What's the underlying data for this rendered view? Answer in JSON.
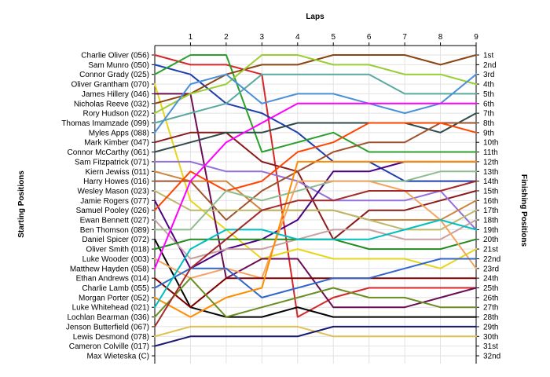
{
  "chart_data": {
    "type": "line",
    "title": "",
    "xlabel": "Laps",
    "ylabel_left": "Starting Positions",
    "ylabel_right": "Finishing Positions",
    "x": [
      0,
      1,
      2,
      3,
      4,
      5,
      6,
      7,
      8,
      9
    ],
    "x_tick_labels": [
      "1",
      "2",
      "3",
      "4",
      "5",
      "6",
      "7",
      "8",
      "9"
    ],
    "ylim": [
      1,
      32
    ],
    "y_inverted": true,
    "grid": true,
    "start_labels": [
      "Charlie Oliver (056)",
      "Sam Munro (050)",
      "Connor Grady (025)",
      "Oliver Grantham (070)",
      "James Hillery (046)",
      "Nicholas Reeve (032)",
      "Rory Hudson (022)",
      "Thomas Imamzade (099)",
      "Myles Apps (088)",
      "Mark Kimber (047)",
      "Connor McCarthy (061)",
      "Sam Fitzpatrick (071)",
      "Kiern Jewiss (011)",
      "Harry Howes (016)",
      "Wesley Mason (023)",
      "Jamie Rogers (077)",
      "Samuel Pooley (026)",
      "Ewan Bennett (027)",
      "Ben Thomson (089)",
      "Daniel Spicer (072)",
      "Oliver Smith (018)",
      "Luke Wooder (003)",
      "Matthew Hayden (058)",
      "Ethan Andrews (014)",
      "Charlie Lamb (055)",
      "Morgan Porter (052)",
      "Luke Whitehead (021)",
      "Lochlan Bearman (036)",
      "Jenson Butterfield (067)",
      "Lewis Desmond (078)",
      "Cameron Colville (017)",
      "Max Wieteska (C)"
    ],
    "finish_labels": [
      "1st",
      "2nd",
      "3rd",
      "4th",
      "5th",
      "6th",
      "7th",
      "8th",
      "9th",
      "10th",
      "11th",
      "12th",
      "13th",
      "14th",
      "15th",
      "16th",
      "17th",
      "18th",
      "19th",
      "20th",
      "21st",
      "22nd",
      "23rd",
      "24th",
      "25th",
      "26th",
      "27th",
      "28th",
      "29th",
      "30th",
      "31st",
      "32nd"
    ],
    "series": [
      {
        "color": "#d62728",
        "values": [
          1,
          2,
          2,
          3,
          28,
          26,
          25,
          25,
          25,
          25
        ]
      },
      {
        "color": "#1f3fae",
        "values": [
          2,
          3,
          6,
          7,
          9,
          12,
          12,
          14,
          14,
          14
        ]
      },
      {
        "color": "#2ca02c",
        "values": [
          3,
          1,
          1,
          11,
          10,
          9,
          11,
          11,
          11,
          11
        ]
      },
      {
        "color": "#e8d51a",
        "values": [
          4,
          16,
          19,
          22,
          21,
          22,
          22,
          22,
          23,
          21
        ]
      },
      {
        "color": "#6a0d55",
        "values": [
          5,
          5,
          24,
          22,
          22,
          27,
          27,
          27,
          26,
          25
        ]
      },
      {
        "color": "#8b4513",
        "values": [
          6,
          5,
          3,
          2,
          2,
          1,
          1,
          1,
          2,
          1
        ]
      },
      {
        "color": "#9acd32",
        "values": [
          7,
          5,
          4,
          1,
          1,
          2,
          2,
          3,
          3,
          4
        ]
      },
      {
        "color": "#5aa9a0",
        "values": [
          8,
          7,
          6,
          3,
          3,
          3,
          3,
          5,
          5,
          5
        ]
      },
      {
        "color": "#4a90d9",
        "values": [
          9,
          4,
          3,
          6,
          5,
          5,
          6,
          7,
          6,
          3
        ]
      },
      {
        "color": "#8b1a1a",
        "values": [
          10,
          9,
          9,
          12,
          13,
          20,
          17,
          17,
          16,
          15
        ]
      },
      {
        "color": "#2e4a4a",
        "values": [
          11,
          10,
          9,
          9,
          8,
          8,
          8,
          8,
          9,
          7
        ]
      },
      {
        "color": "#9370db",
        "values": [
          12,
          12,
          13,
          13,
          14,
          16,
          16,
          16,
          15,
          19
        ]
      },
      {
        "color": "#cd853f",
        "values": [
          13,
          14,
          14,
          17,
          17,
          17,
          18,
          18,
          18,
          16
        ]
      },
      {
        "color": "#a0522d",
        "values": [
          14,
          14,
          18,
          15,
          13,
          11,
          10,
          10,
          8,
          8
        ]
      },
      {
        "color": "#bdb76b",
        "values": [
          15,
          17,
          17,
          17,
          17,
          17,
          18,
          19,
          19,
          17
        ]
      },
      {
        "color": "#4b0082",
        "values": [
          16,
          23,
          21,
          20,
          18,
          13,
          13,
          12,
          12,
          12
        ]
      },
      {
        "color": "#ff4500",
        "values": [
          17,
          13,
          15,
          14,
          11,
          10,
          8,
          8,
          8,
          9
        ]
      },
      {
        "color": "#c8a0a0",
        "values": [
          18,
          22,
          21,
          21,
          20,
          19,
          19,
          20,
          20,
          18
        ]
      },
      {
        "color": "#8fbc8f",
        "values": [
          19,
          19,
          15,
          16,
          15,
          14,
          14,
          14,
          13,
          13
        ]
      },
      {
        "color": "#000000",
        "values": [
          20,
          27,
          28,
          28,
          27,
          28,
          28,
          28,
          28,
          28
        ]
      },
      {
        "color": "#228b22",
        "values": [
          21,
          20,
          20,
          20,
          20,
          20,
          21,
          21,
          21,
          20
        ]
      },
      {
        "color": "#f4a460",
        "values": [
          22,
          24,
          23,
          24,
          14,
          14,
          14,
          15,
          18,
          23
        ]
      },
      {
        "color": "#ff00ff",
        "values": [
          23,
          14,
          10,
          8,
          6,
          6,
          6,
          6,
          6,
          6
        ]
      },
      {
        "color": "#800000",
        "values": [
          24,
          27,
          24,
          24,
          24,
          24,
          24,
          24,
          24,
          24
        ]
      },
      {
        "color": "#3366cc",
        "values": [
          25,
          23,
          23,
          26,
          25,
          24,
          24,
          23,
          22,
          22
        ]
      },
      {
        "color": "#ff8c00",
        "values": [
          26,
          28,
          26,
          25,
          12,
          12,
          12,
          12,
          12,
          12
        ]
      },
      {
        "color": "#00bfbf",
        "values": [
          27,
          21,
          19,
          19,
          20,
          20,
          20,
          19,
          18,
          19
        ]
      },
      {
        "color": "#6b8e23",
        "values": [
          28,
          24,
          28,
          27,
          26,
          25,
          26,
          26,
          27,
          27
        ]
      },
      {
        "color": "#a52a2a",
        "values": [
          29,
          23,
          20,
          17,
          16,
          16,
          15,
          15,
          15,
          14
        ]
      },
      {
        "color": "#e0c050",
        "values": [
          30,
          29,
          29,
          29,
          29,
          30,
          30,
          30,
          30,
          30
        ]
      },
      {
        "color": "#191970",
        "values": [
          31,
          30,
          30,
          30,
          30,
          29,
          29,
          29,
          29,
          29
        ]
      }
    ]
  }
}
